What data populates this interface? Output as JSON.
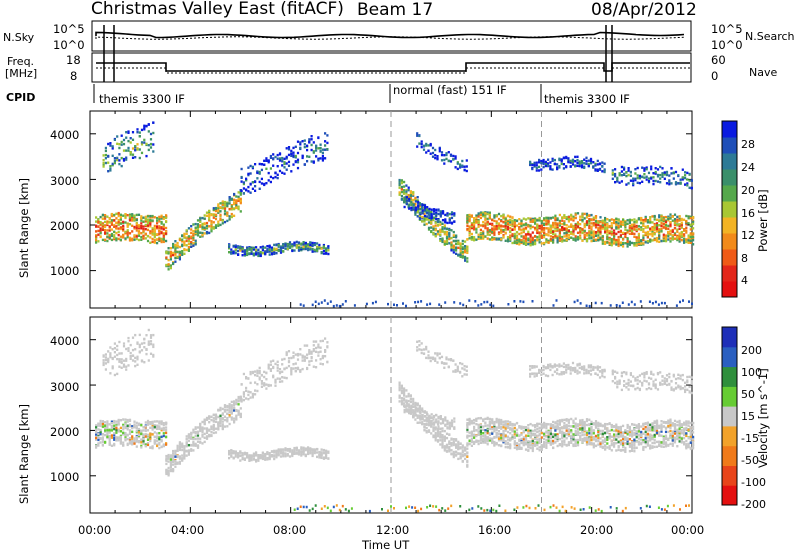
{
  "header": {
    "title": "Christmas Valley East (fitACF)",
    "beam": "Beam 17",
    "date": "08/Apr/2012"
  },
  "status_panels": {
    "nsky_label": "N.Sky",
    "nsearch_label": "N.Search",
    "freq_label_1": "Freq.",
    "freq_label_2": "[MHz]",
    "nave_label": "Nave",
    "cpid_label": "CPID",
    "nsky_ticks": [
      "10^5",
      "10^0"
    ],
    "nsearch_ticks": [
      "10^5",
      "10^0"
    ],
    "freq_ticks": [
      "18",
      "8"
    ],
    "nave_ticks": [
      "60",
      "0"
    ],
    "cpid_segments": [
      "themis 3300 IF",
      "normal (fast) 151 IF",
      "themis 3300 IF"
    ]
  },
  "chart_data": [
    {
      "type": "heatmap",
      "title": "",
      "xlabel": "",
      "ylabel": "Slant Range [km]",
      "ylim": [
        180,
        4500
      ],
      "y_ticks": [
        1000,
        2000,
        3000,
        4000
      ],
      "x_ticks": [
        "00:00",
        "04:00",
        "08:00",
        "12:00",
        "16:00",
        "20:00",
        "00:00"
      ],
      "colorbar_label": "Power [dB]",
      "colorbar_ticks": [
        "28",
        "24",
        "20",
        "16",
        "12",
        "8",
        "4"
      ],
      "colorbar_colors": [
        "#0a1be0",
        "#1f4fb8",
        "#2d7a96",
        "#3a8f6a",
        "#55a84b",
        "#a8c733",
        "#f3b324",
        "#f28a1a",
        "#ef5a17",
        "#e3261a",
        "#e41010"
      ]
    },
    {
      "type": "heatmap",
      "title": "",
      "xlabel": "Time UT",
      "ylabel": "Slant Range [km]",
      "ylim": [
        180,
        4500
      ],
      "y_ticks": [
        1000,
        2000,
        3000,
        4000
      ],
      "x_ticks": [
        "00:00",
        "04:00",
        "08:00",
        "12:00",
        "16:00",
        "20:00",
        "00:00"
      ],
      "colorbar_label": "Velocity [m s^-1]",
      "colorbar_ticks": [
        "200",
        "100",
        "50",
        "15",
        "-15",
        "-50",
        "-100",
        "-200"
      ],
      "colorbar_colors": [
        "#1e2fb8",
        "#2a5fc0",
        "#2f8f3c",
        "#66cc33",
        "#c8c8c8",
        "#f2a22a",
        "#f07a1a",
        "#e8441a",
        "#e41010"
      ]
    }
  ]
}
